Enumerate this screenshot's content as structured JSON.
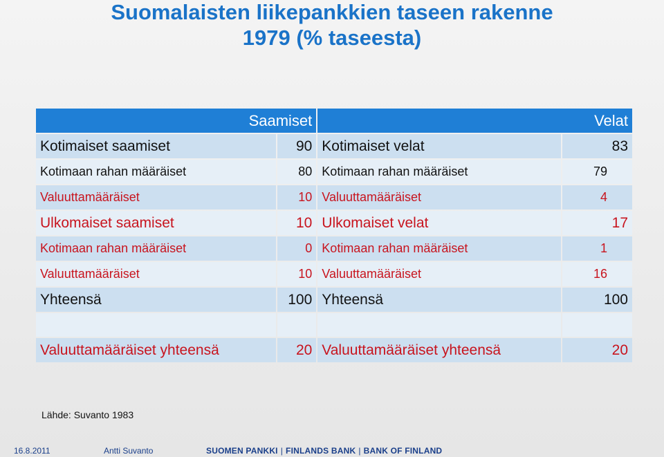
{
  "title": {
    "line1": "Suomalaisten liikepankkien taseen rakenne",
    "line2": "1979 (% taseesta)"
  },
  "table": {
    "headers": {
      "assets": "Saamiset",
      "liabilities": "Velat"
    },
    "rows": [
      {
        "a_label": "Kotimaiset saamiset",
        "a_value": "90",
        "l_label": "Kotimaiset velat",
        "l_value": "83"
      },
      {
        "a_label": "Kotimaan rahan määräiset",
        "a_value": "80",
        "l_label": "Kotimaan rahan määräiset",
        "l_value": "79"
      },
      {
        "a_label": "Valuuttamääräiset",
        "a_value": "10",
        "l_label": "Valuuttamääräiset",
        "l_value": "4"
      },
      {
        "a_label": "Ulkomaiset saamiset",
        "a_value": "10",
        "l_label": "Ulkomaiset velat",
        "l_value": "17"
      },
      {
        "a_label": "Kotimaan rahan määräiset",
        "a_value": "0",
        "l_label": "Kotimaan rahan määräiset",
        "l_value": "1"
      },
      {
        "a_label": "Valuuttamääräiset",
        "a_value": "10",
        "l_label": "Valuuttamääräiset",
        "l_value": "16"
      },
      {
        "a_label": "Yhteensä",
        "a_value": "100",
        "l_label": "Yhteensä",
        "l_value": "100"
      },
      {
        "a_label": "",
        "a_value": "",
        "l_label": "",
        "l_value": ""
      },
      {
        "a_label": "Valuuttamääräiset yhteensä",
        "a_value": "20",
        "l_label": "Valuuttamääräiset yhteensä",
        "l_value": "20"
      }
    ]
  },
  "source": "Lähde: Suvanto 1983",
  "footer": {
    "date": "16.8.2011",
    "author": "Antti Suvanto",
    "bank_fi": "SUOMEN PANKKI",
    "bank_se": "FINLANDS BANK",
    "bank_en": "BANK OF FINLAND",
    "separator": "|"
  }
}
